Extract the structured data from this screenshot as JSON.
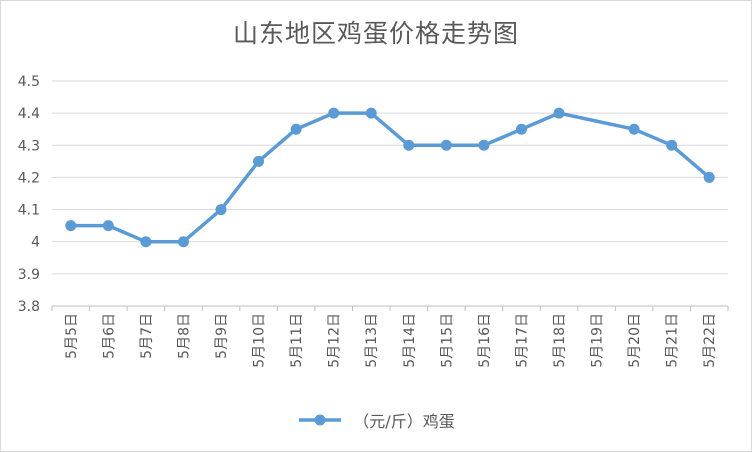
{
  "chart_data": {
    "type": "line",
    "title": "山东地区鸡蛋价格走势图",
    "categories": [
      "5月5日",
      "5月6日",
      "5月7日",
      "5月8日",
      "5月9日",
      "5月10日",
      "5月11日",
      "5月12日",
      "5月13日",
      "5月14日",
      "5月15日",
      "5月16日",
      "5月17日",
      "5月18日",
      "5月19日",
      "5月20日",
      "5月21日",
      "5月22日"
    ],
    "series": [
      {
        "name": "（元/斤）鸡蛋",
        "color": "#5b9bd5",
        "values": [
          4.05,
          4.05,
          4.0,
          4.0,
          4.1,
          4.25,
          4.35,
          4.4,
          4.4,
          4.3,
          4.3,
          4.3,
          4.35,
          4.4,
          null,
          4.35,
          4.3,
          4.2
        ]
      }
    ],
    "ylim": [
      3.8,
      4.5
    ],
    "yticks": [
      "3.8",
      "3.9",
      "4",
      "4.1",
      "4.2",
      "4.3",
      "4.4",
      "4.5"
    ],
    "grid": "horizontal",
    "legend": "bottom",
    "xlabel": "",
    "ylabel": ""
  }
}
